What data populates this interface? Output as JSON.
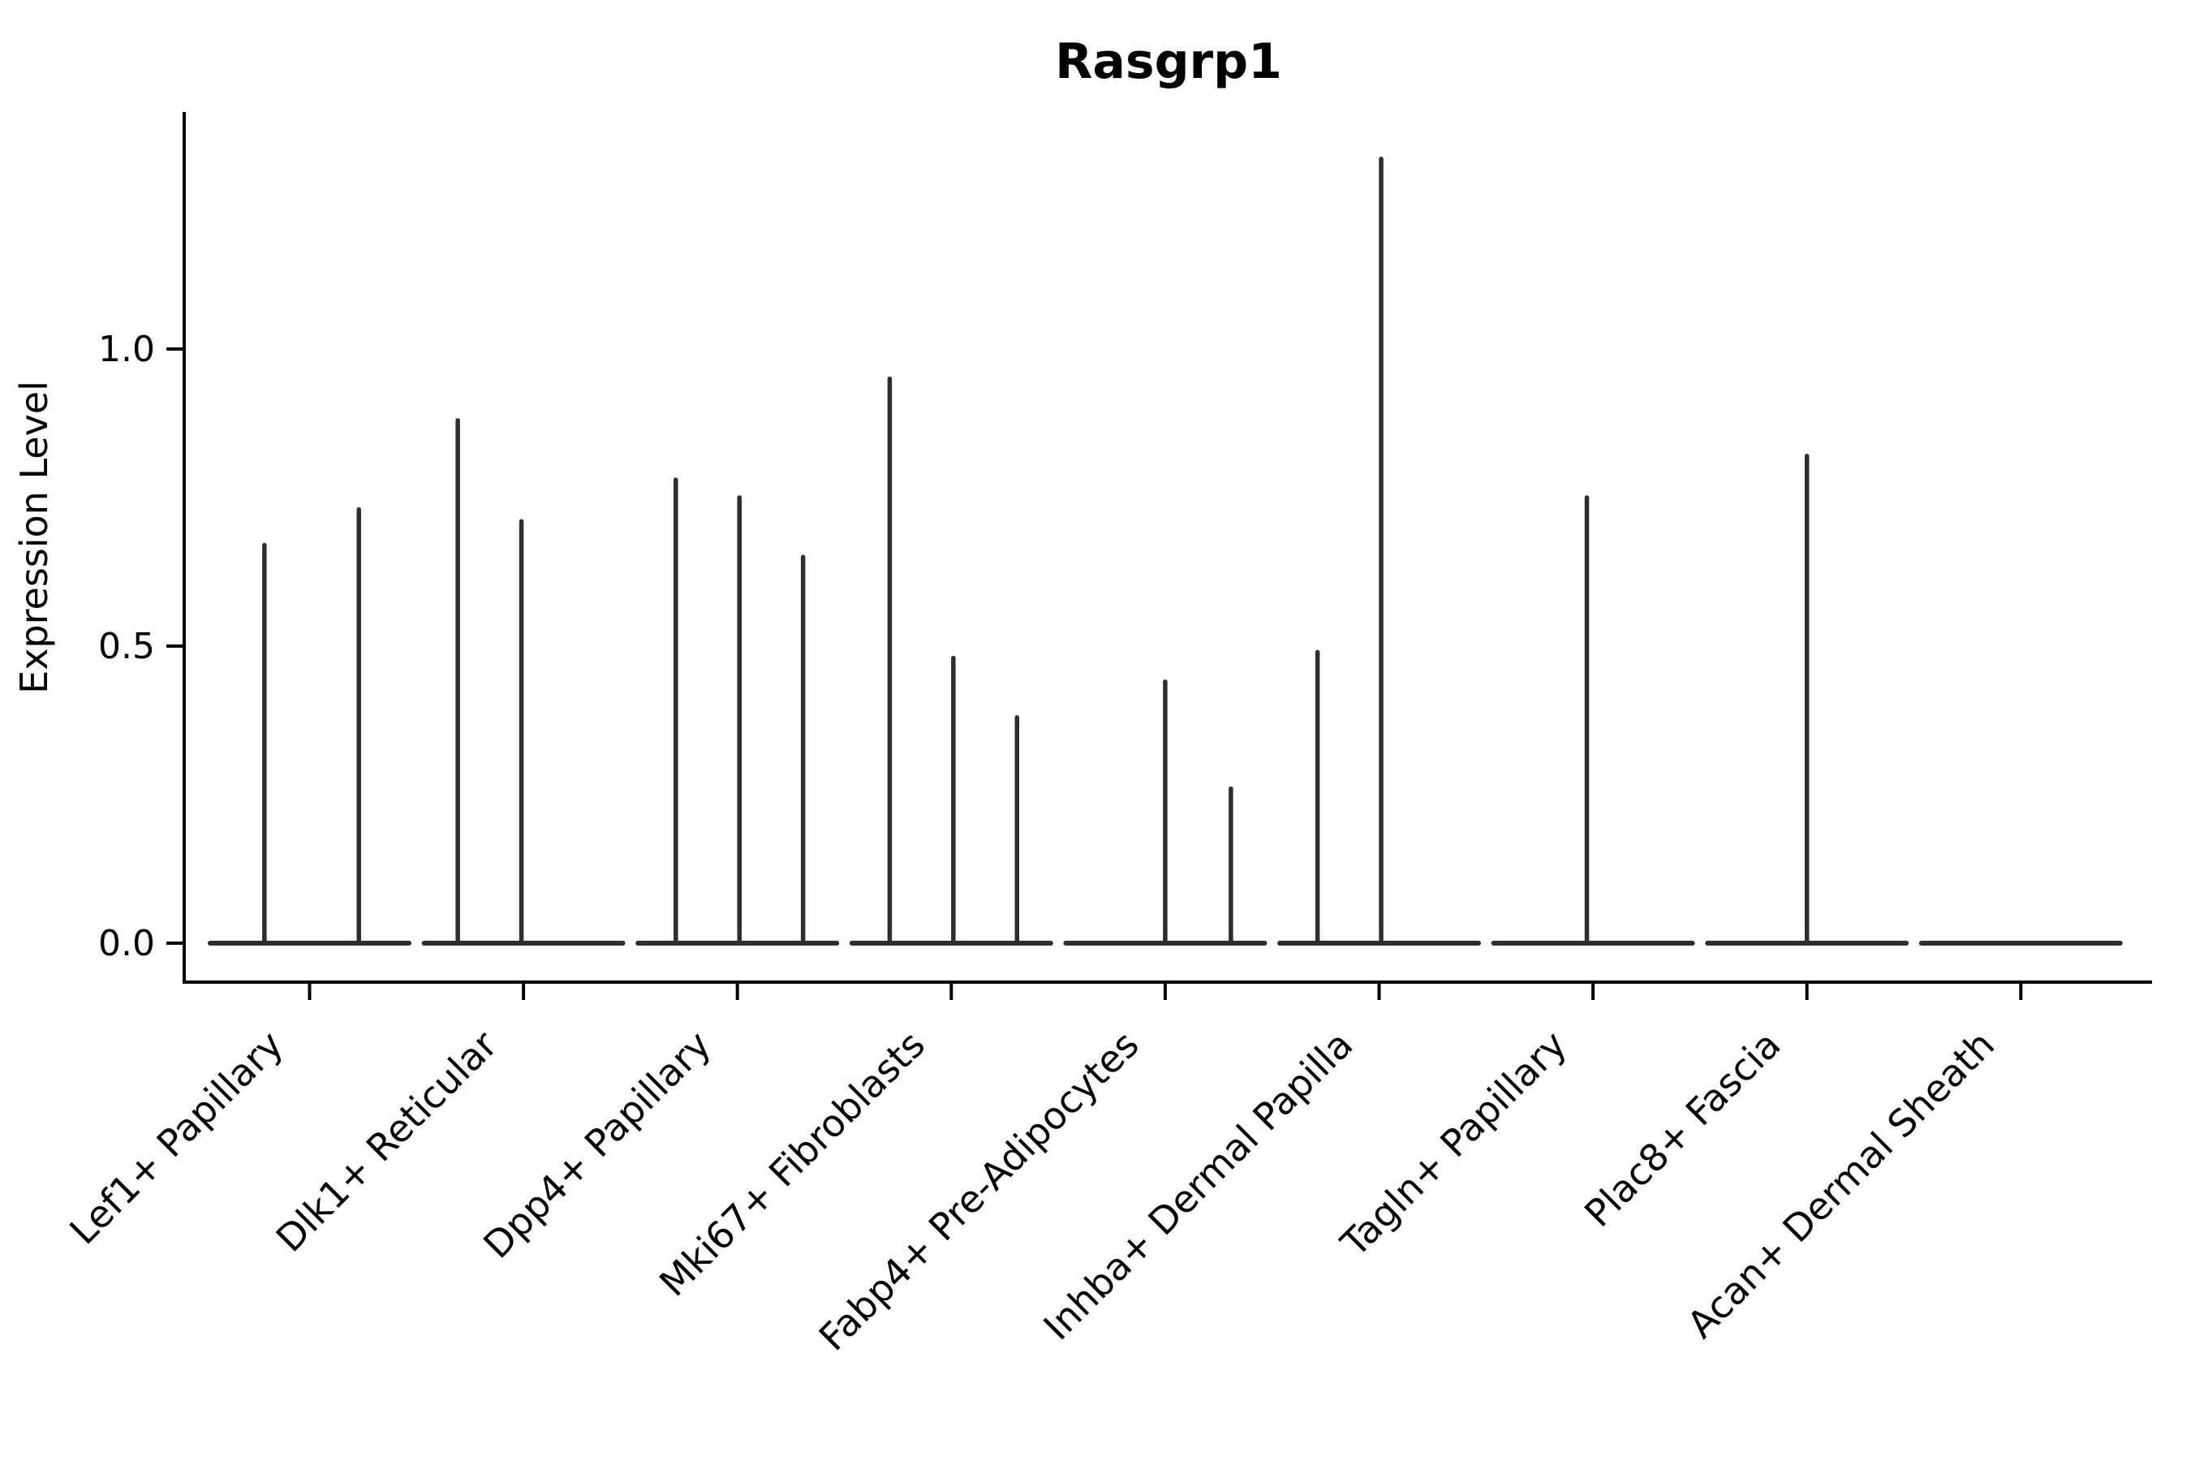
{
  "title": "Rasgrp1",
  "axes": {
    "y_label": "Expression Level",
    "y_tick_labels": [
      "0.0",
      "0.5",
      "1.0"
    ]
  },
  "colors": {
    "violin_line": "#2e2e2e",
    "axis": "#000000",
    "text": "#000000",
    "background": "#ffffff"
  },
  "chart_data": {
    "type": "violin",
    "title": "Rasgrp1",
    "xlabel": "",
    "ylabel": "Expression Level",
    "ylim": [
      -0.07,
      1.4
    ],
    "y_ticks": [
      0.0,
      0.5,
      1.0
    ],
    "grid": false,
    "legend": false,
    "note": "Each category shows 1-3 extremely thin violins: a flat base at expression 0 with a thin vertical tail up to the maximum expression value. 'pos' is the violin center as a fraction of the category band width; 'max' is the top of the tail in Expression Level units.",
    "categories": [
      {
        "label": "Lef1+ Papillary",
        "violins": [
          {
            "pos": 0.28,
            "max": 0.67
          },
          {
            "pos": 0.74,
            "max": 0.73
          }
        ]
      },
      {
        "label": "Dlk1+ Reticular",
        "violins": [
          {
            "pos": 0.18,
            "max": 0.88
          },
          {
            "pos": 0.49,
            "max": 0.71
          }
        ]
      },
      {
        "label": "Dpp4+ Papillary",
        "violins": [
          {
            "pos": 0.2,
            "max": 0.78
          },
          {
            "pos": 0.51,
            "max": 0.75
          },
          {
            "pos": 0.82,
            "max": 0.65
          }
        ]
      },
      {
        "label": "Mki67+ Fibroblasts",
        "violins": [
          {
            "pos": 0.2,
            "max": 0.95
          },
          {
            "pos": 0.51,
            "max": 0.48
          },
          {
            "pos": 0.82,
            "max": 0.38
          }
        ]
      },
      {
        "label": "Fabp4+ Pre-Adipocytes",
        "violins": [
          {
            "pos": 0.5,
            "max": 0.44
          },
          {
            "pos": 0.82,
            "max": 0.26
          }
        ]
      },
      {
        "label": "Inhba+ Dermal Papilla",
        "violins": [
          {
            "pos": 0.2,
            "max": 0.49
          },
          {
            "pos": 0.51,
            "max": 1.32
          }
        ]
      },
      {
        "label": "Tagln+ Papillary",
        "violins": [
          {
            "pos": 0.47,
            "max": 0.75
          }
        ]
      },
      {
        "label": "Plac8+ Fascia",
        "violins": [
          {
            "pos": 0.5,
            "max": 0.82
          }
        ]
      },
      {
        "label": "Acan+ Dermal Sheath",
        "violins": []
      }
    ]
  }
}
